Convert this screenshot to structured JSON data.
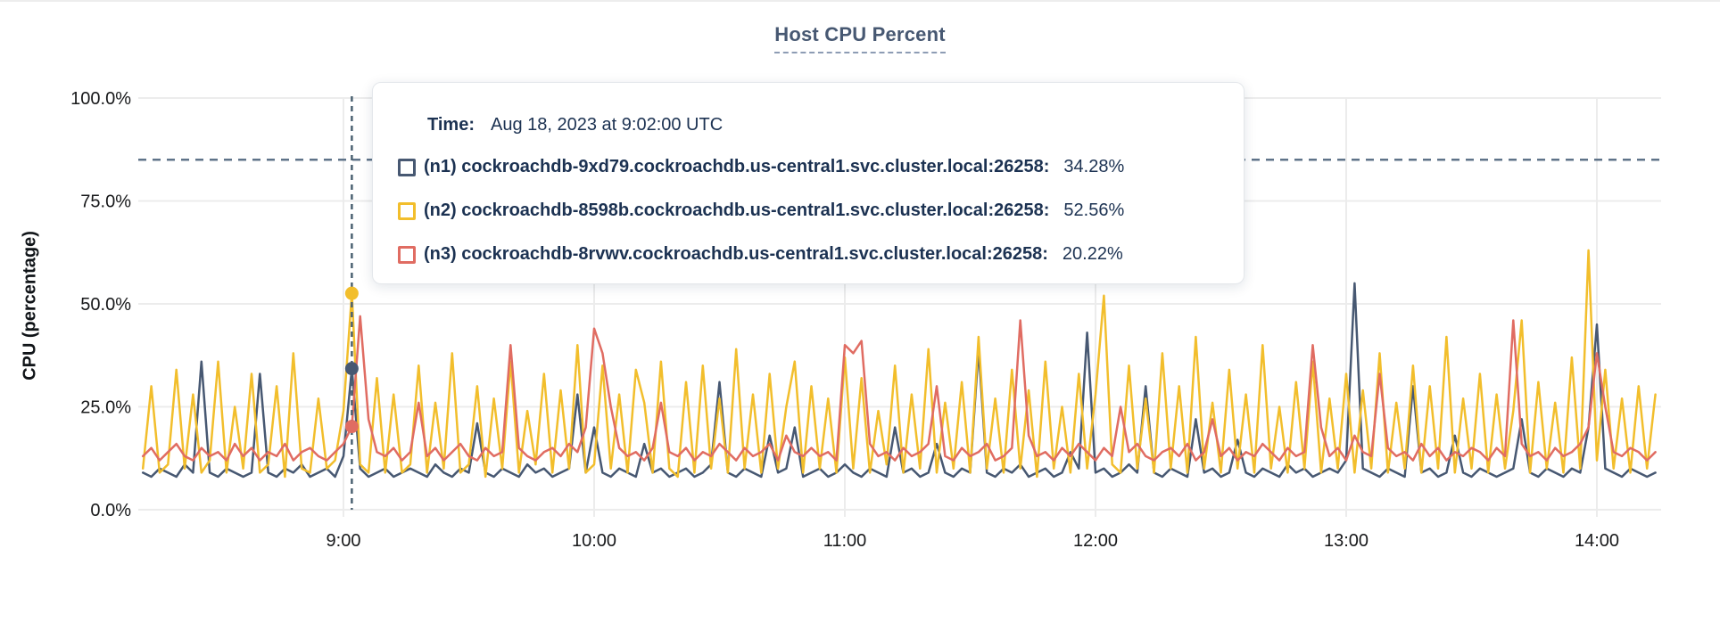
{
  "chart": {
    "threshold_note": "dashed guide line at 85%"
  },
  "tooltip": {
    "time_label": "Time:",
    "time_value": "Aug 18, 2023 at 9:02:00 UTC",
    "rows": [
      {
        "label": "(n1) cockroachdb-9xd79.cockroachdb.us-central1.svc.cluster.local:26258:",
        "value": "34.28%"
      },
      {
        "label": "(n2) cockroachdb-8598b.cockroachdb.us-central1.svc.cluster.local:26258:",
        "value": "52.56%"
      },
      {
        "label": "(n3) cockroachdb-8rvwv.cockroachdb.us-central1.svc.cluster.local:26258:",
        "value": "20.22%"
      }
    ]
  },
  "chart_data": {
    "type": "line",
    "title": "Host CPU Percent",
    "ylabel": "CPU (percentage)",
    "xlabel": "",
    "ylim": [
      0,
      100
    ],
    "grid": true,
    "legend_position": "tooltip-only",
    "y_ticks": [
      {
        "value": 0,
        "label": "0.0%"
      },
      {
        "value": 25,
        "label": "25.0%"
      },
      {
        "value": 50,
        "label": "50.0%"
      },
      {
        "value": 75,
        "label": "75.0%"
      },
      {
        "value": 100,
        "label": "100.0%"
      }
    ],
    "x_ticks": [
      {
        "minutes": 540,
        "label": "9:00"
      },
      {
        "minutes": 600,
        "label": "10:00"
      },
      {
        "minutes": 660,
        "label": "11:00"
      },
      {
        "minutes": 720,
        "label": "12:00"
      },
      {
        "minutes": 780,
        "label": "13:00"
      },
      {
        "minutes": 840,
        "label": "14:00"
      }
    ],
    "x_start_minutes": 492,
    "x_step_minutes": 2,
    "x_range_label": "8:12 - 14:14 UTC",
    "threshold_percent": 85,
    "highlight_index": 25,
    "highlight_time": "9:02:00",
    "series": [
      {
        "id": "n1",
        "name": "(n1) cockroachdb-9xd79.cockroachdb.us-central1.svc.cluster.local:26258",
        "color": "#475872",
        "highlight_value": 34.28,
        "values": [
          9,
          8,
          10,
          9,
          8,
          11,
          9,
          36,
          9,
          8,
          10,
          9,
          8,
          9,
          33,
          9,
          8,
          10,
          9,
          11,
          8,
          9,
          10,
          8,
          13,
          34.28,
          10,
          8,
          9,
          10,
          8,
          9,
          10,
          9,
          8,
          11,
          9,
          8,
          10,
          9,
          21,
          9,
          8,
          10,
          9,
          8,
          11,
          9,
          10,
          8,
          9,
          10,
          28,
          9,
          20,
          9,
          8,
          10,
          9,
          8,
          16,
          9,
          10,
          8,
          9,
          10,
          8,
          9,
          11,
          31,
          9,
          8,
          10,
          9,
          8,
          18,
          9,
          10,
          20,
          8,
          9,
          10,
          8,
          9,
          11,
          9,
          8,
          10,
          9,
          8,
          20,
          9,
          10,
          8,
          9,
          16,
          9,
          8,
          10,
          9,
          39,
          9,
          8,
          10,
          9,
          11,
          8,
          9,
          10,
          8,
          9,
          14,
          10,
          43,
          9,
          10,
          8,
          9,
          11,
          9,
          30,
          9,
          8,
          10,
          9,
          8,
          22,
          9,
          10,
          8,
          9,
          17,
          9,
          8,
          10,
          9,
          8,
          11,
          9,
          10,
          8,
          9,
          10,
          9,
          12,
          55,
          10,
          9,
          8,
          10,
          9,
          8,
          30,
          9,
          10,
          8,
          9,
          18,
          9,
          8,
          10,
          9,
          8,
          9,
          10,
          22,
          9,
          8,
          10,
          9,
          8,
          10,
          9,
          20,
          45,
          10,
          9,
          8,
          10,
          9,
          8,
          9
        ]
      },
      {
        "id": "n2",
        "name": "(n2) cockroachdb-8598b.cockroachdb.us-central1.svc.cluster.local:26258",
        "color": "#F2BE2C",
        "highlight_value": 52.56,
        "values": [
          10,
          30,
          9,
          11,
          34,
          10,
          28,
          9,
          12,
          36,
          9,
          25,
          10,
          33,
          9,
          11,
          30,
          8,
          38,
          10,
          9,
          27,
          10,
          12,
          24,
          52.56,
          11,
          9,
          32,
          9,
          28,
          9,
          11,
          35,
          9,
          26,
          10,
          38,
          9,
          11,
          30,
          8,
          27,
          10,
          36,
          9,
          24,
          11,
          33,
          9,
          29,
          10,
          40,
          9,
          11,
          35,
          10,
          28,
          9,
          34,
          26,
          9,
          36,
          10,
          8,
          31,
          9,
          35,
          10,
          27,
          9,
          39,
          10,
          28,
          9,
          33,
          10,
          25,
          36,
          9,
          30,
          10,
          27,
          9,
          37,
          10,
          32,
          9,
          24,
          11,
          35,
          9,
          28,
          10,
          39,
          9,
          26,
          10,
          31,
          9,
          42,
          10,
          27,
          9,
          34,
          10,
          29,
          8,
          36,
          10,
          25,
          9,
          33,
          10,
          28,
          52,
          11,
          9,
          35,
          10,
          27,
          9,
          38,
          10,
          30,
          9,
          42,
          10,
          26,
          9,
          34,
          10,
          28,
          9,
          40,
          10,
          25,
          9,
          31,
          10,
          36,
          9,
          27,
          10,
          33,
          9,
          29,
          10,
          38,
          9,
          26,
          10,
          35,
          9,
          30,
          10,
          42,
          9,
          27,
          10,
          33,
          9,
          28,
          10,
          24,
          46,
          9,
          31,
          10,
          26,
          9,
          37,
          10,
          63,
          12,
          34,
          10,
          27,
          9,
          30,
          10,
          28
        ]
      },
      {
        "id": "n3",
        "name": "(n3) cockroachdb-8rvwv.cockroachdb.us-central1.svc.cluster.local:26258",
        "color": "#E06C62",
        "highlight_value": 20.22,
        "values": [
          13,
          15,
          12,
          14,
          16,
          13,
          12,
          15,
          13,
          14,
          12,
          16,
          13,
          15,
          12,
          14,
          13,
          16,
          12,
          14,
          15,
          13,
          12,
          14,
          16,
          20.22,
          47,
          22,
          14,
          13,
          15,
          12,
          14,
          26,
          13,
          15,
          12,
          14,
          16,
          13,
          12,
          15,
          13,
          14,
          40,
          15,
          13,
          12,
          14,
          15,
          13,
          16,
          14,
          20,
          44,
          38,
          25,
          15,
          13,
          14,
          12,
          15,
          26,
          14,
          13,
          15,
          12,
          14,
          13,
          16,
          14,
          12,
          15,
          13,
          14,
          16,
          12,
          18,
          14,
          13,
          15,
          13,
          14,
          12,
          40,
          38,
          41,
          16,
          13,
          14,
          12,
          15,
          13,
          14,
          16,
          30,
          13,
          12,
          15,
          13,
          14,
          16,
          12,
          13,
          15,
          46,
          18,
          13,
          14,
          12,
          15,
          13,
          16,
          14,
          12,
          15,
          13,
          25,
          14,
          16,
          13,
          12,
          14,
          15,
          13,
          16,
          12,
          14,
          22,
          13,
          15,
          12,
          14,
          13,
          16,
          14,
          12,
          15,
          13,
          14,
          40,
          20,
          13,
          15,
          12,
          18,
          14,
          13,
          33,
          15,
          13,
          14,
          12,
          16,
          13,
          15,
          12,
          14,
          13,
          15,
          14,
          12,
          15,
          13,
          46,
          16,
          13,
          14,
          12,
          15,
          13,
          14,
          16,
          20,
          38,
          25,
          14,
          13,
          15,
          14,
          12,
          14
        ]
      }
    ],
    "colors": {
      "grid": "#ECECEC",
      "axis_text": "#17181A",
      "title": "#475872",
      "threshold_line": "#5F7389",
      "crosshair_line": "#4C6272",
      "tooltip_text": "#1C3252"
    }
  }
}
